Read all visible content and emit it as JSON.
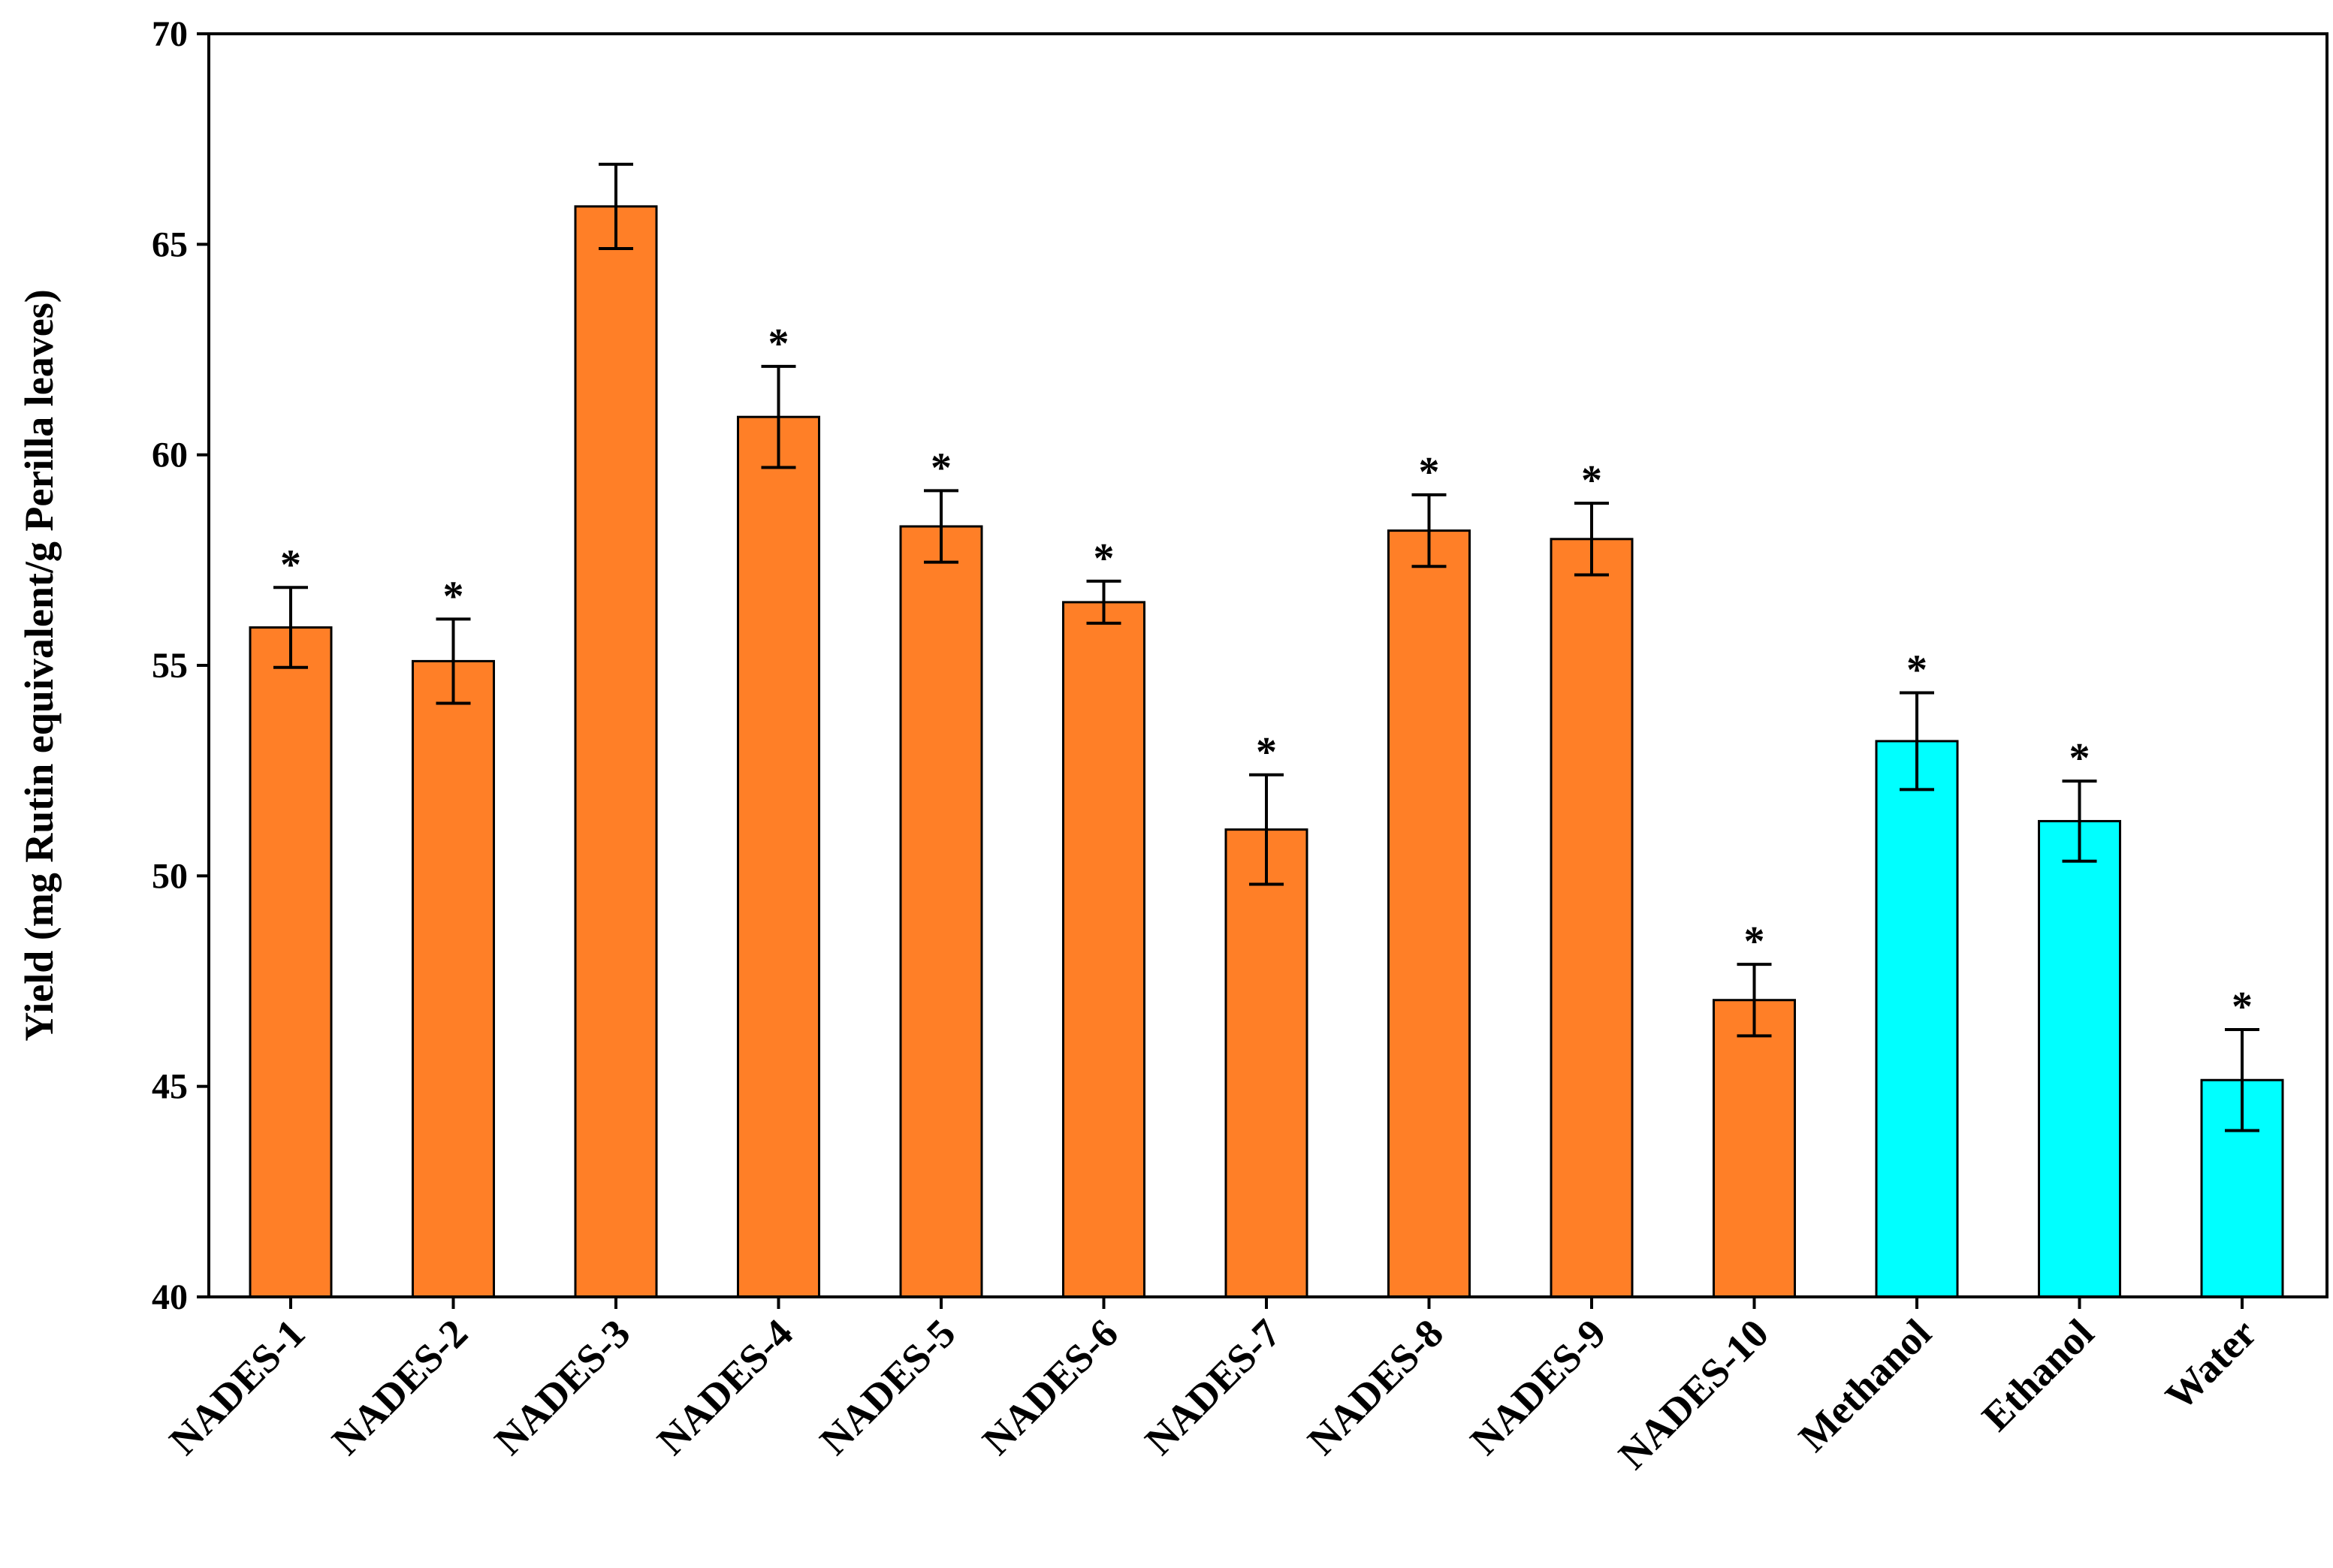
{
  "chart_data": {
    "type": "bar",
    "title": "",
    "xlabel": "",
    "ylabel": "Yield (mg Rutin equivalent/g Perilla leaves)",
    "ylim": [
      40,
      70
    ],
    "yticks": [
      40,
      45,
      50,
      55,
      60,
      65,
      70
    ],
    "grid": false,
    "legend": "none",
    "categories": [
      "NADES-1",
      "NADES-2",
      "NADES-3",
      "NADES-4",
      "NADES-5",
      "NADES-6",
      "NADES-7",
      "NADES-8",
      "NADES-9",
      "NADES-10",
      "Methanol",
      "Ethanol",
      "Water"
    ],
    "values": [
      55.9,
      55.1,
      65.9,
      60.9,
      58.3,
      56.5,
      51.1,
      58.2,
      58.0,
      47.05,
      53.2,
      51.3,
      45.15
    ],
    "errors": [
      0.95,
      1.0,
      1.0,
      1.2,
      0.85,
      0.5,
      1.3,
      0.85,
      0.85,
      0.85,
      1.15,
      0.95,
      1.2
    ],
    "annotations": [
      "*",
      "*",
      "",
      "*",
      "*",
      "*",
      "*",
      "*",
      "*",
      "*",
      "*",
      "*",
      "*"
    ],
    "bar_colors": [
      "#FF7F27",
      "#FF7F27",
      "#FF7F27",
      "#FF7F27",
      "#FF7F27",
      "#FF7F27",
      "#FF7F27",
      "#FF7F27",
      "#FF7F27",
      "#FF7F27",
      "#00FFFF",
      "#00FFFF",
      "#00FFFF"
    ]
  }
}
